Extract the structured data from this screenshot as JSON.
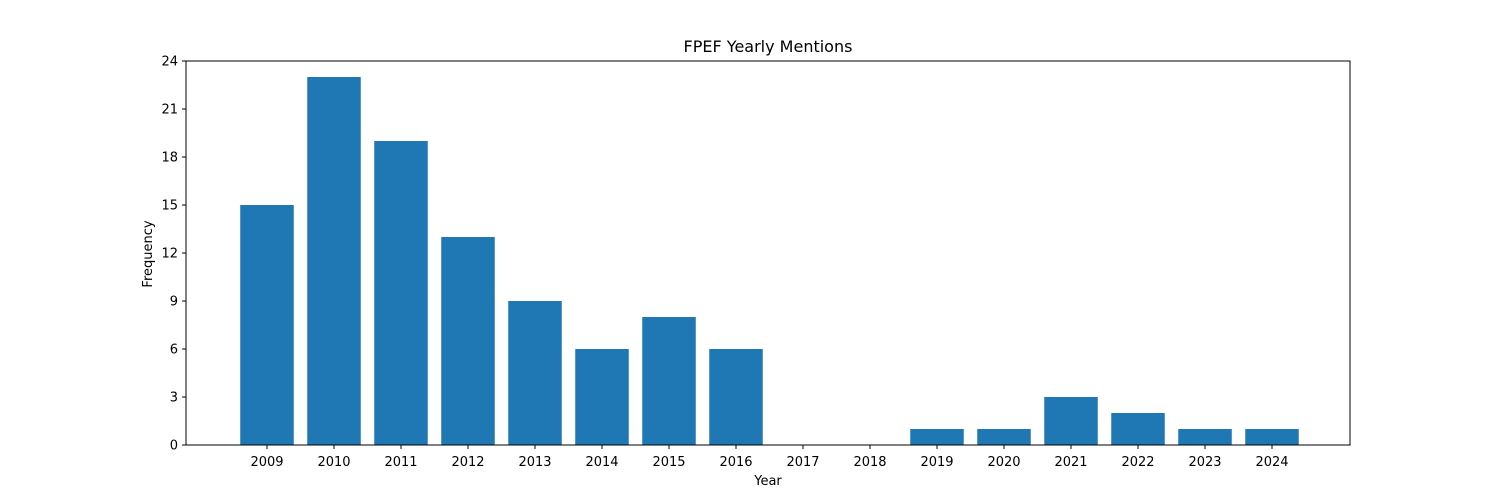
{
  "chart_data": {
    "type": "bar",
    "title": "FPEF Yearly Mentions",
    "xlabel": "Year",
    "ylabel": "Frequency",
    "categories": [
      "2009",
      "2010",
      "2011",
      "2012",
      "2013",
      "2014",
      "2015",
      "2016",
      "2017",
      "2018",
      "2019",
      "2020",
      "2021",
      "2022",
      "2023",
      "2024"
    ],
    "values": [
      15,
      23,
      19,
      13,
      9,
      6,
      8,
      6,
      0,
      0,
      1,
      1,
      3,
      2,
      1,
      1
    ],
    "ylim": [
      0,
      24
    ],
    "yticks": [
      0,
      3,
      6,
      9,
      12,
      15,
      18,
      21,
      24
    ],
    "grid": false,
    "legend": "none",
    "colors": {
      "bar": "#1f77b4",
      "axis": "#000000",
      "background": "#ffffff"
    }
  }
}
